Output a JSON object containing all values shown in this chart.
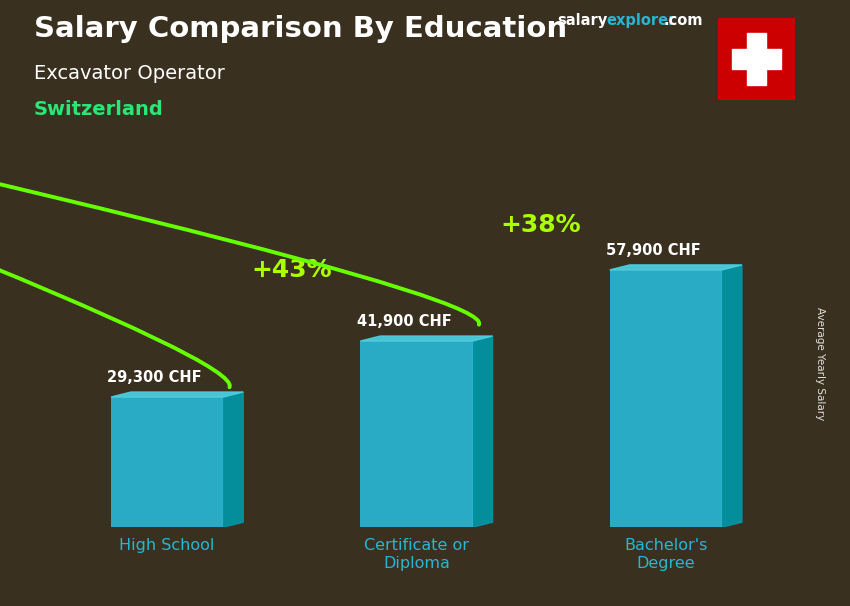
{
  "title_line1": "Salary Comparison By Education",
  "subtitle_line1": "Excavator Operator",
  "subtitle_line2": "Switzerland",
  "ylabel": "Average Yearly Salary",
  "categories": [
    "High School",
    "Certificate or\nDiploma",
    "Bachelor's\nDegree"
  ],
  "values": [
    29300,
    41900,
    57900
  ],
  "value_labels": [
    "29,300 CHF",
    "41,900 CHF",
    "57,900 CHF"
  ],
  "bar_color_face": "#29b6d4",
  "bar_color_side": "#0097a7",
  "bar_color_top": "#4dd0e1",
  "pct_labels": [
    "+43%",
    "+38%"
  ],
  "background_color": "#3a3020",
  "title_color": "#ffffff",
  "subtitle_job_color": "#ffffff",
  "subtitle_country_color": "#29e676",
  "value_label_color": "#ffffff",
  "pct_color": "#aaff00",
  "arrow_color": "#66ff00",
  "site_salary_color": "#ffffff",
  "site_explorer_color": "#29b6d4",
  "site_com_color": "#ffffff",
  "ylim": [
    0,
    75000
  ],
  "bar_positions": [
    0,
    1,
    2
  ],
  "bar_width": 0.45,
  "figsize": [
    8.5,
    6.06
  ],
  "dpi": 100
}
